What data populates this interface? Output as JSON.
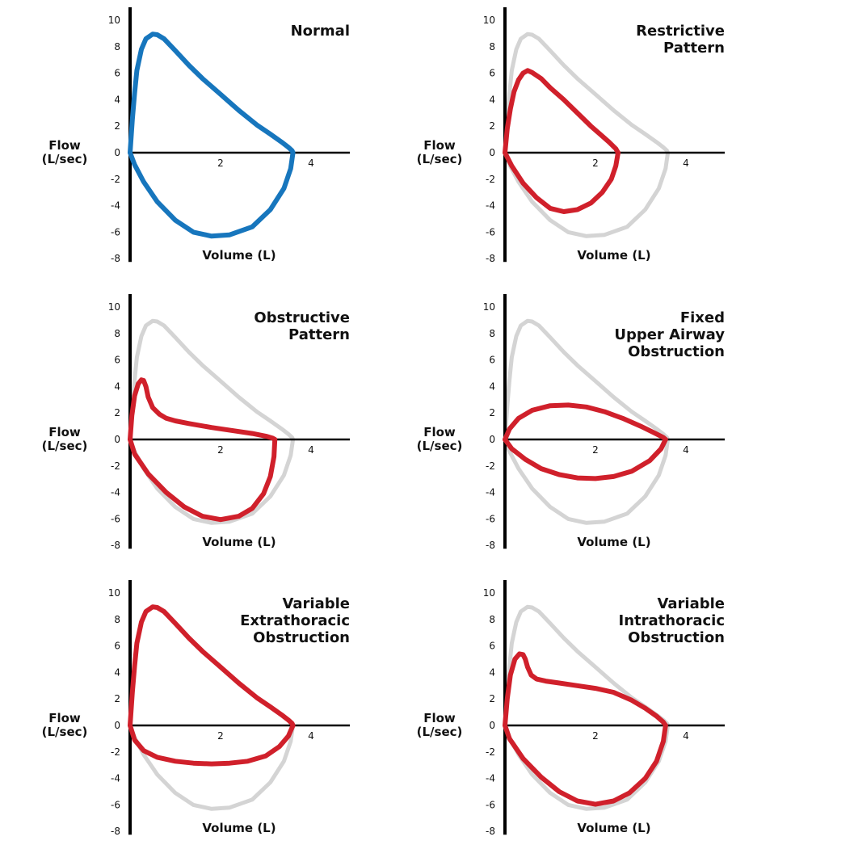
{
  "chart_data": [
    {
      "type": "line",
      "title_lines": [
        "Normal"
      ],
      "ylabel_lines": [
        "Flow",
        "(L/sec)"
      ],
      "xlabel": "Volume (L)",
      "x_ticks": [
        "2",
        "4"
      ],
      "y_ticks": [
        "10",
        "8",
        "6",
        "4",
        "2",
        "0",
        "-2",
        "-4",
        "-6",
        "-8"
      ],
      "xlim": [
        0,
        4.8
      ],
      "ylim": [
        -8,
        10
      ],
      "colors": {
        "series": "#1776bd",
        "reference": "#d4d4d4"
      },
      "series": [
        {
          "x": [
            0,
            0.05,
            0.1,
            0.15,
            0.25,
            0.35,
            0.5,
            0.6,
            0.75,
            1.0,
            1.3,
            1.6,
            2.0,
            2.4,
            2.8,
            3.1,
            3.35,
            3.5,
            3.58,
            3.6
          ],
          "y": [
            0,
            2.5,
            4.5,
            6.2,
            7.8,
            8.6,
            8.95,
            8.9,
            8.6,
            7.7,
            6.6,
            5.6,
            4.4,
            3.2,
            2.1,
            1.4,
            0.8,
            0.4,
            0.15,
            0
          ]
        },
        {
          "x": [
            3.6,
            3.55,
            3.4,
            3.1,
            2.7,
            2.2,
            1.8,
            1.4,
            1.0,
            0.6,
            0.3,
            0.1,
            0
          ],
          "y": [
            0,
            -1.2,
            -2.7,
            -4.3,
            -5.6,
            -6.2,
            -6.3,
            -6.0,
            -5.1,
            -3.7,
            -2.2,
            -0.9,
            0
          ]
        }
      ]
    },
    {
      "type": "line",
      "title_lines": [
        "Restrictive",
        "Pattern"
      ],
      "ylabel_lines": [
        "Flow",
        "(L/sec)"
      ],
      "xlabel": "Volume (L)",
      "x_ticks": [
        "2",
        "4"
      ],
      "y_ticks": [
        "10",
        "8",
        "6",
        "4",
        "2",
        "0",
        "-2",
        "-4",
        "-6",
        "-8"
      ],
      "xlim": [
        0,
        4.8
      ],
      "ylim": [
        -8,
        10
      ],
      "colors": {
        "series": "#d0202b",
        "reference": "#d4d4d4"
      },
      "series": [
        {
          "x": [
            0,
            0.05,
            0.12,
            0.2,
            0.3,
            0.4,
            0.5,
            0.6,
            0.8,
            1.0,
            1.3,
            1.6,
            1.9,
            2.1,
            2.3,
            2.45,
            2.5
          ],
          "y": [
            0,
            1.8,
            3.3,
            4.6,
            5.5,
            6.0,
            6.2,
            6.05,
            5.6,
            4.9,
            4.0,
            3.0,
            2.0,
            1.4,
            0.8,
            0.3,
            0
          ]
        },
        {
          "x": [
            2.5,
            2.45,
            2.35,
            2.15,
            1.9,
            1.6,
            1.3,
            1.0,
            0.7,
            0.4,
            0.15,
            0
          ],
          "y": [
            0,
            -1.0,
            -2.0,
            -3.0,
            -3.8,
            -4.3,
            -4.45,
            -4.2,
            -3.4,
            -2.3,
            -1.0,
            0
          ]
        }
      ]
    },
    {
      "type": "line",
      "title_lines": [
        "Obstructive",
        "Pattern"
      ],
      "ylabel_lines": [
        "Flow",
        "(L/sec)"
      ],
      "xlabel": "Volume (L)",
      "x_ticks": [
        "2",
        "4"
      ],
      "y_ticks": [
        "10",
        "8",
        "6",
        "4",
        "2",
        "0",
        "-2",
        "-4",
        "-6",
        "-8"
      ],
      "xlim": [
        0,
        4.8
      ],
      "ylim": [
        -8,
        10
      ],
      "colors": {
        "series": "#d0202b",
        "reference": "#d4d4d4"
      },
      "series": [
        {
          "x": [
            0,
            0.04,
            0.1,
            0.18,
            0.25,
            0.3,
            0.35,
            0.4,
            0.5,
            0.65,
            0.8,
            1.0,
            1.3,
            1.8,
            2.3,
            2.7,
            3.0,
            3.15,
            3.2
          ],
          "y": [
            0,
            1.8,
            3.3,
            4.2,
            4.5,
            4.45,
            4.0,
            3.2,
            2.4,
            1.9,
            1.6,
            1.4,
            1.2,
            0.9,
            0.65,
            0.45,
            0.25,
            0.1,
            0
          ]
        },
        {
          "x": [
            3.2,
            3.18,
            3.1,
            2.95,
            2.7,
            2.4,
            2.0,
            1.6,
            1.2,
            0.8,
            0.4,
            0.1,
            0
          ],
          "y": [
            0,
            -1.3,
            -2.8,
            -4.1,
            -5.2,
            -5.8,
            -6.05,
            -5.8,
            -5.1,
            -4.0,
            -2.6,
            -1.1,
            0
          ]
        }
      ]
    },
    {
      "type": "line",
      "title_lines": [
        "Fixed",
        "Upper Airway",
        "Obstruction"
      ],
      "ylabel_lines": [
        "Flow",
        "(L/sec)"
      ],
      "xlabel": "Volume (L)",
      "x_ticks": [
        "2",
        "4"
      ],
      "y_ticks": [
        "10",
        "8",
        "6",
        "4",
        "2",
        "0",
        "-2",
        "-4",
        "-6",
        "-8"
      ],
      "xlim": [
        0,
        4.8
      ],
      "ylim": [
        -8,
        10
      ],
      "colors": {
        "series": "#d0202b",
        "reference": "#d4d4d4"
      },
      "series": [
        {
          "x": [
            0,
            0.1,
            0.3,
            0.6,
            1.0,
            1.4,
            1.8,
            2.2,
            2.6,
            3.0,
            3.3,
            3.5,
            3.55
          ],
          "y": [
            0,
            0.8,
            1.6,
            2.2,
            2.55,
            2.6,
            2.45,
            2.1,
            1.6,
            1.0,
            0.5,
            0.15,
            0
          ]
        },
        {
          "x": [
            3.55,
            3.45,
            3.2,
            2.8,
            2.4,
            2.0,
            1.6,
            1.2,
            0.8,
            0.45,
            0.15,
            0
          ],
          "y": [
            0,
            -0.7,
            -1.6,
            -2.4,
            -2.8,
            -2.95,
            -2.9,
            -2.65,
            -2.2,
            -1.5,
            -0.7,
            0
          ]
        }
      ]
    },
    {
      "type": "line",
      "title_lines": [
        "Variable",
        "Extrathoracic",
        "Obstruction"
      ],
      "ylabel_lines": [
        "Flow",
        "(L/sec)"
      ],
      "xlabel": "Volume (L)",
      "x_ticks": [
        "2",
        "4"
      ],
      "y_ticks": [
        "10",
        "8",
        "6",
        "4",
        "2",
        "0",
        "-2",
        "-4",
        "-6",
        "-8"
      ],
      "xlim": [
        0,
        4.8
      ],
      "ylim": [
        -8,
        10
      ],
      "colors": {
        "series": "#d0202b",
        "reference": "#d4d4d4"
      },
      "series": [
        {
          "x": [
            0,
            0.05,
            0.1,
            0.15,
            0.25,
            0.35,
            0.5,
            0.6,
            0.75,
            1.0,
            1.3,
            1.6,
            2.0,
            2.4,
            2.8,
            3.1,
            3.35,
            3.5,
            3.58,
            3.6
          ],
          "y": [
            0,
            2.5,
            4.5,
            6.2,
            7.8,
            8.6,
            8.95,
            8.9,
            8.6,
            7.7,
            6.6,
            5.6,
            4.4,
            3.2,
            2.1,
            1.4,
            0.8,
            0.4,
            0.15,
            0
          ]
        },
        {
          "x": [
            3.6,
            3.5,
            3.3,
            3.0,
            2.6,
            2.2,
            1.8,
            1.4,
            1.0,
            0.6,
            0.3,
            0.1,
            0
          ],
          "y": [
            0,
            -0.8,
            -1.6,
            -2.3,
            -2.7,
            -2.85,
            -2.9,
            -2.85,
            -2.7,
            -2.4,
            -1.9,
            -1.1,
            0
          ]
        }
      ]
    },
    {
      "type": "line",
      "title_lines": [
        "Variable",
        "Intrathoracic",
        "Obstruction"
      ],
      "ylabel_lines": [
        "Flow",
        "(L/sec)"
      ],
      "xlabel": "Volume (L)",
      "x_ticks": [
        "2",
        "4"
      ],
      "y_ticks": [
        "10",
        "8",
        "6",
        "4",
        "2",
        "0",
        "-2",
        "-4",
        "-6",
        "-8"
      ],
      "xlim": [
        0,
        4.8
      ],
      "ylim": [
        -8,
        10
      ],
      "colors": {
        "series": "#d0202b",
        "reference": "#d4d4d4"
      },
      "series": [
        {
          "x": [
            0,
            0.05,
            0.12,
            0.22,
            0.32,
            0.4,
            0.45,
            0.5,
            0.58,
            0.7,
            0.9,
            1.2,
            1.6,
            2.0,
            2.4,
            2.8,
            3.1,
            3.35,
            3.5,
            3.55
          ],
          "y": [
            0,
            2.0,
            3.8,
            5.0,
            5.4,
            5.35,
            5.0,
            4.4,
            3.8,
            3.5,
            3.35,
            3.2,
            3.0,
            2.8,
            2.5,
            1.9,
            1.3,
            0.7,
            0.25,
            0
          ]
        },
        {
          "x": [
            3.55,
            3.5,
            3.35,
            3.1,
            2.75,
            2.4,
            2.0,
            1.6,
            1.2,
            0.8,
            0.4,
            0.1,
            0
          ],
          "y": [
            0,
            -1.2,
            -2.7,
            -4.0,
            -5.1,
            -5.7,
            -5.95,
            -5.7,
            -5.0,
            -3.9,
            -2.5,
            -1.0,
            0
          ]
        }
      ]
    }
  ],
  "reference_loop": {
    "x": [
      0,
      0.05,
      0.1,
      0.15,
      0.25,
      0.35,
      0.5,
      0.6,
      0.75,
      1.0,
      1.3,
      1.6,
      2.0,
      2.4,
      2.8,
      3.1,
      3.35,
      3.5,
      3.58,
      3.6,
      3.55,
      3.4,
      3.1,
      2.7,
      2.2,
      1.8,
      1.4,
      1.0,
      0.6,
      0.3,
      0.1,
      0
    ],
    "y": [
      0,
      2.5,
      4.5,
      6.2,
      7.8,
      8.6,
      8.95,
      8.9,
      8.6,
      7.7,
      6.6,
      5.6,
      4.4,
      3.2,
      2.1,
      1.4,
      0.8,
      0.4,
      0.15,
      0,
      -1.2,
      -2.7,
      -4.3,
      -5.6,
      -6.2,
      -6.3,
      -6.0,
      -5.1,
      -3.7,
      -2.2,
      -0.9,
      0
    ]
  }
}
